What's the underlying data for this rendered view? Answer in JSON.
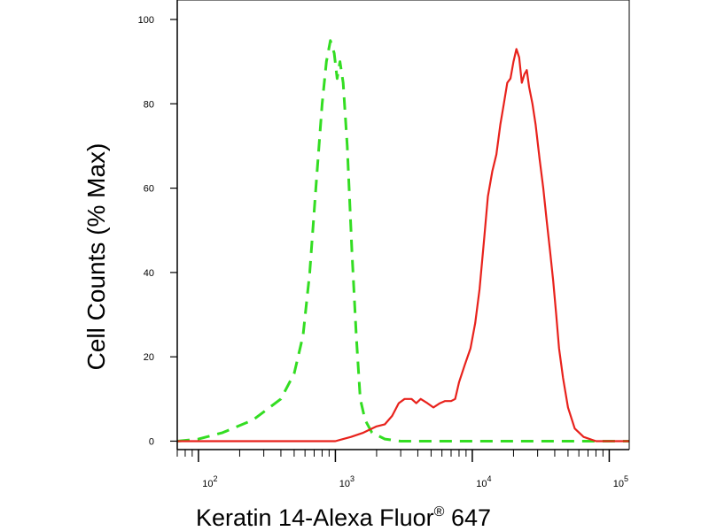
{
  "chart_data": {
    "type": "line",
    "title": "",
    "xlabel": "Keratin 14-Alexa Fluor",
    "xlabel_super": "®",
    "xlabel_suffix": " 647",
    "ylabel": "Cell Counts (% Max)",
    "x_scale": "log",
    "xlim": [
      70,
      140000
    ],
    "ylim": [
      -2,
      100
    ],
    "x_ticks": [
      {
        "value": 100,
        "base": "10",
        "exp": "2"
      },
      {
        "value": 1000,
        "base": "10",
        "exp": "3"
      },
      {
        "value": 10000,
        "base": "10",
        "exp": "4"
      },
      {
        "value": 100000,
        "base": "10",
        "exp": "5"
      }
    ],
    "y_ticks": [
      0,
      20,
      40,
      60,
      80,
      100
    ],
    "grid": false,
    "legend": "none",
    "series": [
      {
        "style": "dashed",
        "color": "#33dd22",
        "points": [
          [
            70,
            0
          ],
          [
            100,
            0.5
          ],
          [
            150,
            2
          ],
          [
            250,
            5
          ],
          [
            400,
            10
          ],
          [
            500,
            16
          ],
          [
            580,
            25
          ],
          [
            650,
            40
          ],
          [
            720,
            60
          ],
          [
            800,
            80
          ],
          [
            860,
            90
          ],
          [
            920,
            95
          ],
          [
            980,
            92
          ],
          [
            1030,
            86
          ],
          [
            1080,
            90
          ],
          [
            1140,
            85
          ],
          [
            1220,
            70
          ],
          [
            1320,
            45
          ],
          [
            1420,
            25
          ],
          [
            1520,
            10
          ],
          [
            1650,
            5
          ],
          [
            1850,
            2
          ],
          [
            2300,
            0.5
          ],
          [
            3000,
            0
          ],
          [
            10000,
            0
          ],
          [
            140000,
            0
          ]
        ]
      },
      {
        "style": "solid",
        "color": "#e8221c",
        "points": [
          [
            70,
            0
          ],
          [
            1000,
            0
          ],
          [
            1300,
            1
          ],
          [
            1600,
            2
          ],
          [
            2000,
            3.5
          ],
          [
            2300,
            4
          ],
          [
            2600,
            6
          ],
          [
            2900,
            9
          ],
          [
            3200,
            10
          ],
          [
            3600,
            10
          ],
          [
            3900,
            9
          ],
          [
            4200,
            10
          ],
          [
            4700,
            9
          ],
          [
            5200,
            8
          ],
          [
            5800,
            9
          ],
          [
            6300,
            9.5
          ],
          [
            7000,
            9.5
          ],
          [
            7500,
            10
          ],
          [
            8000,
            14
          ],
          [
            8800,
            18
          ],
          [
            9700,
            22
          ],
          [
            10500,
            28
          ],
          [
            11300,
            36
          ],
          [
            12200,
            48
          ],
          [
            13000,
            58
          ],
          [
            14000,
            64
          ],
          [
            15000,
            68
          ],
          [
            16000,
            75
          ],
          [
            17000,
            80
          ],
          [
            18000,
            85
          ],
          [
            19000,
            86
          ],
          [
            20000,
            90
          ],
          [
            21000,
            93
          ],
          [
            22000,
            91
          ],
          [
            23000,
            85
          ],
          [
            24000,
            87
          ],
          [
            25000,
            88
          ],
          [
            26000,
            84
          ],
          [
            27500,
            80
          ],
          [
            29000,
            75
          ],
          [
            31000,
            67
          ],
          [
            33000,
            60
          ],
          [
            35000,
            52
          ],
          [
            37000,
            45
          ],
          [
            39000,
            38
          ],
          [
            41000,
            30
          ],
          [
            43000,
            22
          ],
          [
            46000,
            15
          ],
          [
            50000,
            8
          ],
          [
            56000,
            3
          ],
          [
            65000,
            1
          ],
          [
            80000,
            0
          ],
          [
            140000,
            0
          ]
        ]
      }
    ]
  }
}
